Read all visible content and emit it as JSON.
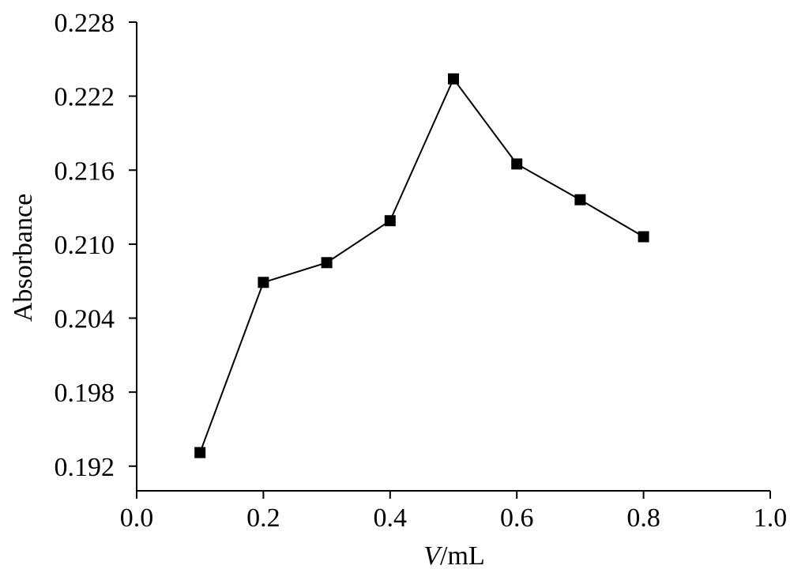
{
  "chart_data": {
    "type": "line",
    "x": [
      0.1,
      0.2,
      0.3,
      0.4,
      0.5,
      0.6,
      0.7,
      0.8
    ],
    "series": [
      {
        "values": [
          0.1931,
          0.2069,
          0.2085,
          0.2119,
          0.2234,
          0.2165,
          0.2136,
          0.2106
        ]
      }
    ],
    "xlim": [
      0.0,
      1.0
    ],
    "ylim": [
      0.19,
      0.228
    ],
    "xticks": [
      "0.0",
      "0.2",
      "0.4",
      "0.6",
      "0.8",
      "1.0"
    ],
    "xtick_values": [
      0.0,
      0.2,
      0.4,
      0.6,
      0.8,
      1.0
    ],
    "yticks": [
      "0.192",
      "0.198",
      "0.204",
      "0.210",
      "0.216",
      "0.222",
      "0.228"
    ],
    "ytick_values": [
      0.192,
      0.198,
      0.204,
      0.21,
      0.216,
      0.222,
      0.228
    ],
    "xlabel_italic": "V",
    "xlabel_rest": "/mL",
    "ylabel": "Absorbance",
    "marker": "square",
    "color": "#000000",
    "grid": false
  }
}
